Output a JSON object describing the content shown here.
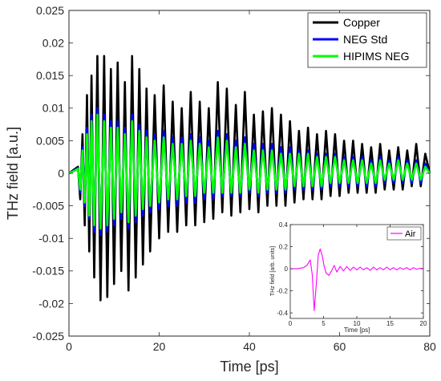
{
  "chart_data": {
    "main": {
      "type": "line",
      "xlabel": "Time [ps]",
      "ylabel": "THz field [a.u.]",
      "xlim": [
        0,
        80
      ],
      "ylim": [
        -0.025,
        0.025
      ],
      "xticks": [
        0,
        20,
        40,
        60,
        80
      ],
      "xtick_labels": [
        "0",
        "20",
        "40",
        "60",
        "80"
      ],
      "yticks": [
        -0.025,
        -0.02,
        -0.015,
        -0.01,
        -0.005,
        0,
        0.005,
        0.01,
        0.015,
        0.02,
        0.025
      ],
      "ytick_labels": [
        "-0.025",
        "-0.02",
        "-0.015",
        "-0.01",
        "-0.005",
        "0",
        "0.005",
        "0.01",
        "0.015",
        "0.02",
        "0.025"
      ],
      "grid": false,
      "legend_position": "top-right",
      "series": [
        {
          "name": "Copper",
          "color": "#000000",
          "x": [
            0,
            1,
            2,
            2.5,
            3,
            3.5,
            4,
            4.5,
            5,
            5.6,
            6.3,
            7,
            7.8,
            8.5,
            9.3,
            10,
            10.8,
            11.6,
            12.4,
            13.2,
            14,
            14.8,
            15.6,
            16.4,
            17.2,
            18,
            19,
            20,
            21,
            22,
            23,
            24,
            25,
            26,
            27,
            28,
            29,
            30,
            31,
            32,
            33,
            34,
            35,
            36,
            37,
            38,
            39,
            40,
            41,
            42,
            43,
            44,
            45,
            46,
            47,
            48,
            49,
            50,
            51,
            52,
            53,
            54,
            55,
            56,
            57,
            58,
            59,
            60,
            61,
            62,
            63,
            64,
            65,
            66,
            67,
            68,
            69,
            70,
            71,
            72,
            73,
            74,
            75,
            76,
            77,
            78,
            79,
            80
          ],
          "y": [
            0,
            0.0005,
            0.001,
            -0.004,
            0.006,
            -0.008,
            0.012,
            -0.012,
            0.015,
            -0.016,
            0.018,
            -0.0195,
            0.018,
            -0.019,
            0.016,
            -0.017,
            0.017,
            -0.015,
            0.014,
            -0.018,
            0.018,
            -0.016,
            0.016,
            -0.014,
            0.013,
            -0.012,
            0.012,
            -0.01,
            0.0135,
            -0.009,
            0.011,
            -0.009,
            0.01,
            -0.008,
            0.0125,
            -0.008,
            0.011,
            -0.0075,
            0.01,
            -0.007,
            0.014,
            -0.006,
            0.013,
            -0.0065,
            0.0105,
            -0.006,
            0.0125,
            -0.0055,
            0.009,
            -0.006,
            0.0095,
            -0.005,
            0.01,
            -0.005,
            0.009,
            -0.005,
            0.008,
            -0.0045,
            0.0065,
            -0.004,
            0.007,
            -0.004,
            0.006,
            -0.004,
            0.0065,
            -0.0035,
            0.006,
            -0.0035,
            0.005,
            -0.003,
            0.005,
            -0.003,
            0.0045,
            -0.003,
            0.004,
            -0.003,
            0.0045,
            -0.0025,
            0.0035,
            -0.0025,
            0.004,
            -0.0025,
            0.0035,
            -0.002,
            0.0045,
            -0.002,
            0.003,
            0
          ]
        },
        {
          "name": "NEG Std",
          "color": "#0000ff",
          "x": [
            0,
            1,
            2,
            2.5,
            3,
            3.5,
            4,
            4.5,
            5,
            5.6,
            6.3,
            7,
            7.8,
            8.5,
            9.3,
            10,
            10.8,
            11.6,
            12.4,
            13.2,
            14,
            14.8,
            15.6,
            16.4,
            17.2,
            18,
            19,
            20,
            21,
            22,
            23,
            24,
            25,
            26,
            27,
            28,
            29,
            30,
            31,
            32,
            33,
            34,
            35,
            36,
            37,
            38,
            39,
            40,
            41,
            42,
            43,
            44,
            45,
            46,
            47,
            48,
            49,
            50,
            51,
            52,
            53,
            54,
            55,
            56,
            57,
            58,
            59,
            60,
            61,
            62,
            63,
            64,
            65,
            66,
            67,
            68,
            69,
            70,
            71,
            72,
            73,
            74,
            75,
            76,
            77,
            78,
            79,
            80
          ],
          "y": [
            0,
            0.0004,
            0.0008,
            -0.003,
            0.004,
            -0.005,
            0.007,
            -0.007,
            0.009,
            -0.009,
            0.01,
            -0.0095,
            0.009,
            -0.009,
            0.008,
            -0.008,
            0.008,
            -0.007,
            0.007,
            -0.0085,
            0.009,
            -0.0075,
            0.0075,
            -0.0065,
            0.0065,
            -0.006,
            0.006,
            -0.0055,
            0.0065,
            -0.005,
            0.0055,
            -0.005,
            0.0055,
            -0.0045,
            0.006,
            -0.0045,
            0.0055,
            -0.004,
            0.005,
            -0.004,
            0.0065,
            -0.0035,
            0.006,
            -0.0035,
            0.005,
            -0.0035,
            0.0055,
            -0.003,
            0.0045,
            -0.0035,
            0.0045,
            -0.003,
            0.0045,
            -0.003,
            0.004,
            -0.003,
            0.004,
            -0.0025,
            0.0035,
            -0.0025,
            0.0035,
            -0.0025,
            0.003,
            -0.0025,
            0.003,
            -0.002,
            0.003,
            -0.002,
            0.0025,
            -0.002,
            0.0025,
            -0.002,
            0.0025,
            -0.002,
            0.002,
            -0.002,
            0.0025,
            -0.0015,
            0.002,
            -0.0015,
            0.0025,
            -0.0015,
            0.002,
            -0.0015,
            0.002,
            -0.0015,
            0.0015,
            0
          ]
        },
        {
          "name": "HIPIMS NEG",
          "color": "#00ff00",
          "x": [
            0,
            1,
            2,
            2.5,
            3,
            3.5,
            4,
            4.5,
            5,
            5.6,
            6.3,
            7,
            7.8,
            8.5,
            9.3,
            10,
            10.8,
            11.6,
            12.4,
            13.2,
            14,
            14.8,
            15.6,
            16.4,
            17.2,
            18,
            19,
            20,
            21,
            22,
            23,
            24,
            25,
            26,
            27,
            28,
            29,
            30,
            31,
            32,
            33,
            34,
            35,
            36,
            37,
            38,
            39,
            40,
            41,
            42,
            43,
            44,
            45,
            46,
            47,
            48,
            49,
            50,
            51,
            52,
            53,
            54,
            55,
            56,
            57,
            58,
            59,
            60,
            61,
            62,
            63,
            64,
            65,
            66,
            67,
            68,
            69,
            70,
            71,
            72,
            73,
            74,
            75,
            76,
            77,
            78,
            79,
            80
          ],
          "y": [
            0,
            0.0003,
            0.0007,
            -0.0025,
            0.0035,
            -0.0045,
            0.006,
            -0.0065,
            0.008,
            -0.008,
            0.009,
            -0.0085,
            0.008,
            -0.008,
            0.007,
            -0.007,
            0.007,
            -0.006,
            0.006,
            -0.0075,
            0.008,
            -0.0065,
            0.0065,
            -0.0055,
            0.0055,
            -0.005,
            0.005,
            -0.0045,
            0.0055,
            -0.004,
            0.0045,
            -0.004,
            0.0045,
            -0.0035,
            0.005,
            -0.0035,
            0.0045,
            -0.003,
            0.004,
            -0.003,
            0.0055,
            -0.003,
            0.005,
            -0.003,
            0.004,
            -0.003,
            0.0045,
            -0.0025,
            0.0035,
            -0.003,
            0.0035,
            -0.0025,
            0.0035,
            -0.0025,
            0.003,
            -0.0025,
            0.003,
            -0.002,
            0.003,
            -0.002,
            0.003,
            -0.002,
            0.0025,
            -0.002,
            0.0025,
            -0.0015,
            0.0025,
            -0.0015,
            0.002,
            -0.0015,
            0.002,
            -0.0015,
            0.002,
            -0.0015,
            0.0015,
            -0.0015,
            0.002,
            -0.001,
            0.0015,
            -0.001,
            0.002,
            -0.001,
            0.0015,
            -0.001,
            0.0015,
            -0.001,
            0.001,
            0
          ]
        }
      ]
    },
    "inset": {
      "type": "line",
      "xlabel": "Time [ps]",
      "ylabel": "THz field [arb. units]",
      "xlim": [
        0,
        20
      ],
      "ylim": [
        -0.45,
        0.4
      ],
      "xticks": [
        0,
        5,
        10,
        15,
        20
      ],
      "xtick_labels": [
        "0",
        "5",
        "10",
        "15",
        "20"
      ],
      "yticks": [
        -0.4,
        -0.2,
        0,
        0.2,
        0.4
      ],
      "ytick_labels": [
        "-0.4",
        "-0.2",
        "0",
        "0.2",
        "0.4"
      ],
      "grid": false,
      "legend_position": "top-right",
      "series": [
        {
          "name": "Air",
          "color": "#ff00ff",
          "x": [
            0,
            1,
            2,
            2.5,
            3,
            3.3,
            3.6,
            3.9,
            4.2,
            4.5,
            4.8,
            5.1,
            5.4,
            5.8,
            6.2,
            6.6,
            7,
            7.5,
            8,
            8.5,
            9,
            9.5,
            10,
            10.5,
            11,
            11.5,
            12,
            12.5,
            13,
            13.5,
            14,
            14.5,
            15,
            15.5,
            16,
            16.5,
            17,
            17.5,
            18,
            18.5,
            19,
            19.5,
            20
          ],
          "y": [
            0,
            0,
            0.01,
            0.03,
            0.08,
            -0.05,
            -0.38,
            -0.15,
            0.12,
            0.18,
            0.12,
            0.02,
            -0.04,
            -0.06,
            -0.02,
            0.03,
            -0.03,
            0.02,
            -0.02,
            0.02,
            -0.015,
            0.015,
            -0.01,
            0.015,
            -0.01,
            0.01,
            -0.015,
            0.015,
            -0.01,
            0.01,
            -0.01,
            0.015,
            -0.01,
            0.01,
            -0.01,
            0.01,
            -0.005,
            0.01,
            -0.01,
            0.01,
            -0.005,
            0.005,
            0
          ]
        }
      ]
    }
  }
}
